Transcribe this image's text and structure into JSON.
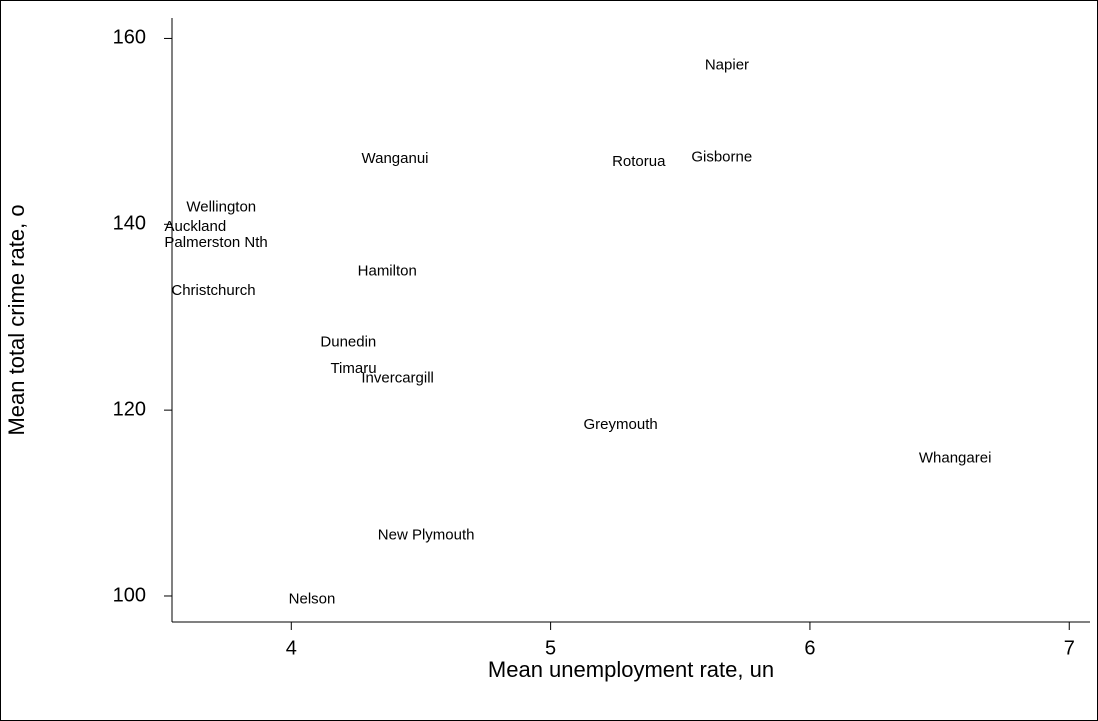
{
  "chart_data": {
    "type": "scatter",
    "x_label": "Mean unemployment rate, un",
    "y_label": "Mean total crime rate, o",
    "xlim": [
      3.54,
      7.08
    ],
    "ylim": [
      97.2,
      162.2
    ],
    "xticks": [
      4,
      5,
      6,
      7
    ],
    "yticks": [
      100,
      120,
      140,
      160
    ],
    "grid": false,
    "series": [
      {
        "color": "#000000",
        "labels": [
          "Napier",
          "Wanganui",
          "Rotorua",
          "Gisborne",
          "Wellington",
          "Auckland",
          "Palmerston Nth",
          "Hamilton",
          "Christchurch",
          "Dunedin",
          "Timaru",
          "Invercargill",
          "Greymouth",
          "Whangarei",
          "New Plymouth",
          "Nelson"
        ],
        "x": [
          5.68,
          4.4,
          5.34,
          5.66,
          3.73,
          3.63,
          3.71,
          4.37,
          3.7,
          4.22,
          4.24,
          4.41,
          5.27,
          6.56,
          4.52,
          4.08
        ],
        "values": [
          157.1,
          147.0,
          146.7,
          147.2,
          141.8,
          139.7,
          138.0,
          134.9,
          132.8,
          127.3,
          124.4,
          123.4,
          118.4,
          114.8,
          106.5,
          99.6
        ]
      }
    ]
  }
}
